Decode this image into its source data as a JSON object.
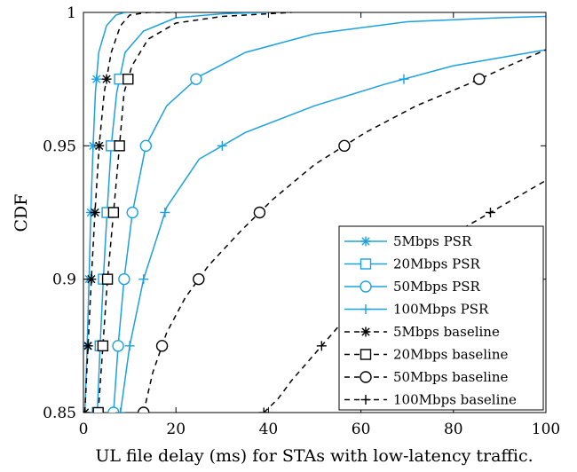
{
  "chart_data": {
    "type": "line",
    "title": "",
    "xlabel": "UL file delay (ms) for STAs with low-latency traffic.",
    "ylabel": "CDF",
    "xlim": [
      0,
      100
    ],
    "ylim": [
      0.85,
      1
    ],
    "xticks": [
      "0",
      "20",
      "40",
      "60",
      "80",
      "100"
    ],
    "yticks": [
      "0.85",
      "0.9",
      "0.95",
      "1"
    ],
    "grid": false,
    "legend_position": "bottom-right",
    "colors": {
      "psr": "#1ba1e2",
      "baseline": "#000000"
    },
    "series": [
      {
        "name": "5Mbps PSR",
        "color": "#1ba1e2",
        "dash": "solid",
        "marker": "asterisk",
        "points": [
          [
            0.3,
            0.85
          ],
          [
            0.8,
            0.875
          ],
          [
            1.2,
            0.9
          ],
          [
            1.6,
            0.925
          ],
          [
            2.1,
            0.95
          ],
          [
            2.6,
            0.97
          ],
          [
            3.3,
            0.985
          ],
          [
            5,
            0.995
          ],
          [
            7,
            0.999
          ],
          [
            9,
            1.0
          ],
          [
            10,
            1.0
          ]
        ]
      },
      {
        "name": "20Mbps PSR",
        "color": "#1ba1e2",
        "dash": "solid",
        "marker": "square",
        "points": [
          [
            3,
            0.85
          ],
          [
            3.6,
            0.875
          ],
          [
            4.3,
            0.9
          ],
          [
            5.1,
            0.925
          ],
          [
            6,
            0.95
          ],
          [
            7.2,
            0.97
          ],
          [
            9,
            0.985
          ],
          [
            13,
            0.993
          ],
          [
            20,
            0.998
          ],
          [
            30,
            0.9995
          ],
          [
            40,
            1.0
          ]
        ]
      },
      {
        "name": "50Mbps PSR",
        "color": "#1ba1e2",
        "dash": "solid",
        "marker": "circle",
        "points": [
          [
            6.5,
            0.85
          ],
          [
            7.5,
            0.875
          ],
          [
            8.8,
            0.9
          ],
          [
            10.6,
            0.925
          ],
          [
            13.5,
            0.95
          ],
          [
            18,
            0.965
          ],
          [
            25,
            0.976
          ],
          [
            35,
            0.985
          ],
          [
            50,
            0.992
          ],
          [
            70,
            0.9965
          ],
          [
            90,
            0.998
          ],
          [
            100,
            0.9985
          ]
        ]
      },
      {
        "name": "100Mbps PSR",
        "color": "#1ba1e2",
        "dash": "solid",
        "marker": "plus",
        "points": [
          [
            8,
            0.85
          ],
          [
            10,
            0.875
          ],
          [
            13,
            0.9
          ],
          [
            18,
            0.927
          ],
          [
            25,
            0.945
          ],
          [
            35,
            0.955
          ],
          [
            50,
            0.965
          ],
          [
            65,
            0.973
          ],
          [
            80,
            0.98
          ],
          [
            100,
            0.986
          ]
        ]
      },
      {
        "name": "5Mbps baseline",
        "color": "#000000",
        "dash": "dashed",
        "marker": "asterisk",
        "points": [
          [
            0.3,
            0.85
          ],
          [
            1,
            0.875
          ],
          [
            1.7,
            0.9
          ],
          [
            2.5,
            0.925
          ],
          [
            3.4,
            0.95
          ],
          [
            4.5,
            0.97
          ],
          [
            6,
            0.985
          ],
          [
            8,
            0.995
          ],
          [
            10,
            0.999
          ],
          [
            14,
            1.0
          ],
          [
            20,
            1.0
          ]
        ]
      },
      {
        "name": "20Mbps baseline",
        "color": "#000000",
        "dash": "dashed",
        "marker": "square",
        "points": [
          [
            3.2,
            0.85
          ],
          [
            4.2,
            0.875
          ],
          [
            5.2,
            0.9
          ],
          [
            6.5,
            0.925
          ],
          [
            7.8,
            0.95
          ],
          [
            8.8,
            0.97
          ],
          [
            10.5,
            0.98
          ],
          [
            14,
            0.99
          ],
          [
            20,
            0.996
          ],
          [
            30,
            0.9985
          ],
          [
            45,
            1.0
          ]
        ]
      },
      {
        "name": "50Mbps baseline",
        "color": "#000000",
        "dash": "dashed",
        "marker": "circle",
        "points": [
          [
            13,
            0.85
          ],
          [
            15,
            0.865
          ],
          [
            18,
            0.88
          ],
          [
            22,
            0.893
          ],
          [
            27,
            0.905
          ],
          [
            34,
            0.918
          ],
          [
            41,
            0.93
          ],
          [
            50,
            0.943
          ],
          [
            61,
            0.955
          ],
          [
            72,
            0.965
          ],
          [
            83,
            0.973
          ],
          [
            92,
            0.98
          ],
          [
            100,
            0.986
          ]
        ]
      },
      {
        "name": "100Mbps baseline",
        "color": "#000000",
        "dash": "dashed",
        "marker": "plus",
        "points": [
          [
            39,
            0.85
          ],
          [
            42,
            0.855
          ],
          [
            45,
            0.862
          ],
          [
            50,
            0.872
          ],
          [
            55,
            0.882
          ],
          [
            62,
            0.893
          ],
          [
            70,
            0.905
          ],
          [
            80,
            0.917
          ],
          [
            90,
            0.927
          ],
          [
            100,
            0.937
          ]
        ]
      }
    ]
  }
}
